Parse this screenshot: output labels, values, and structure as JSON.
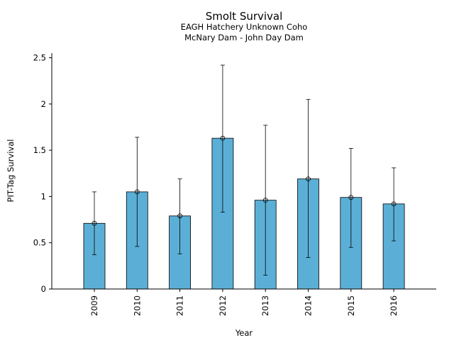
{
  "chart_data": {
    "type": "bar",
    "title": "Smolt Survival",
    "subtitle": [
      "EAGH Hatchery Unknown Coho",
      "McNary Dam - John Day Dam"
    ],
    "xlabel": "Year",
    "ylabel": "PIT-Tag Survival",
    "categories": [
      "2009",
      "2010",
      "2011",
      "2012",
      "2013",
      "2014",
      "2015",
      "2016"
    ],
    "values": [
      0.71,
      1.05,
      0.79,
      1.63,
      0.96,
      1.19,
      0.99,
      0.92
    ],
    "error_low": [
      0.37,
      0.46,
      0.38,
      0.83,
      0.15,
      0.34,
      0.45,
      0.52
    ],
    "error_high": [
      1.05,
      1.64,
      1.19,
      2.42,
      1.77,
      2.05,
      1.52,
      1.31
    ],
    "ylim": [
      0,
      2.55
    ],
    "yticks": [
      0,
      0.5,
      1,
      1.5,
      2,
      2.5
    ],
    "ytick_labels": [
      "0",
      "0.5",
      "1",
      "1.5",
      "2",
      "2.5"
    ],
    "bar_color": "#5bafd6",
    "grid": false,
    "legend": "none"
  }
}
